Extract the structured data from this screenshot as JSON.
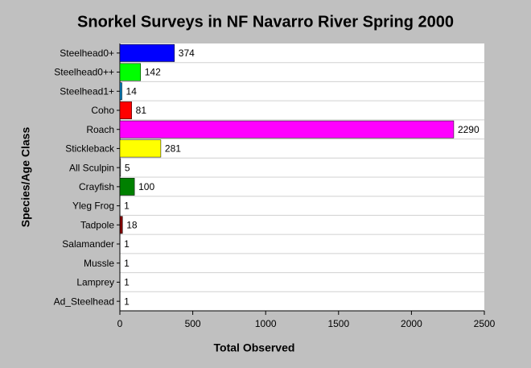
{
  "chart_data": {
    "type": "hbar",
    "title": "Snorkel Surveys in NF Navarro River Spring 2000",
    "x_label": "Total Observed",
    "y_label": "Species/Age Class",
    "categories": [
      "Steelhead0+",
      "Steelhead0++",
      "Steelhead1+",
      "Coho",
      "Roach",
      "Stickleback",
      "All Sculpin",
      "Crayfish",
      "Yleg Frog",
      "Tadpole",
      "Salamander",
      "Mussle",
      "Lamprey",
      "Ad_Steelhead"
    ],
    "values": [
      374,
      142,
      14,
      81,
      2290,
      281,
      5,
      100,
      1,
      18,
      1,
      1,
      1,
      1
    ],
    "colors": [
      "#0000ff",
      "#00ff00",
      "#0080c0",
      "#ff0000",
      "#ff00ff",
      "#ffff00",
      "#808080",
      "#008000",
      "#008080",
      "#800000",
      "#400040",
      "#c0c000",
      "#808080",
      "#000080"
    ],
    "xlim": [
      0,
      2500
    ],
    "xticks": [
      0,
      500,
      1000,
      1500,
      2000,
      2500
    ]
  }
}
